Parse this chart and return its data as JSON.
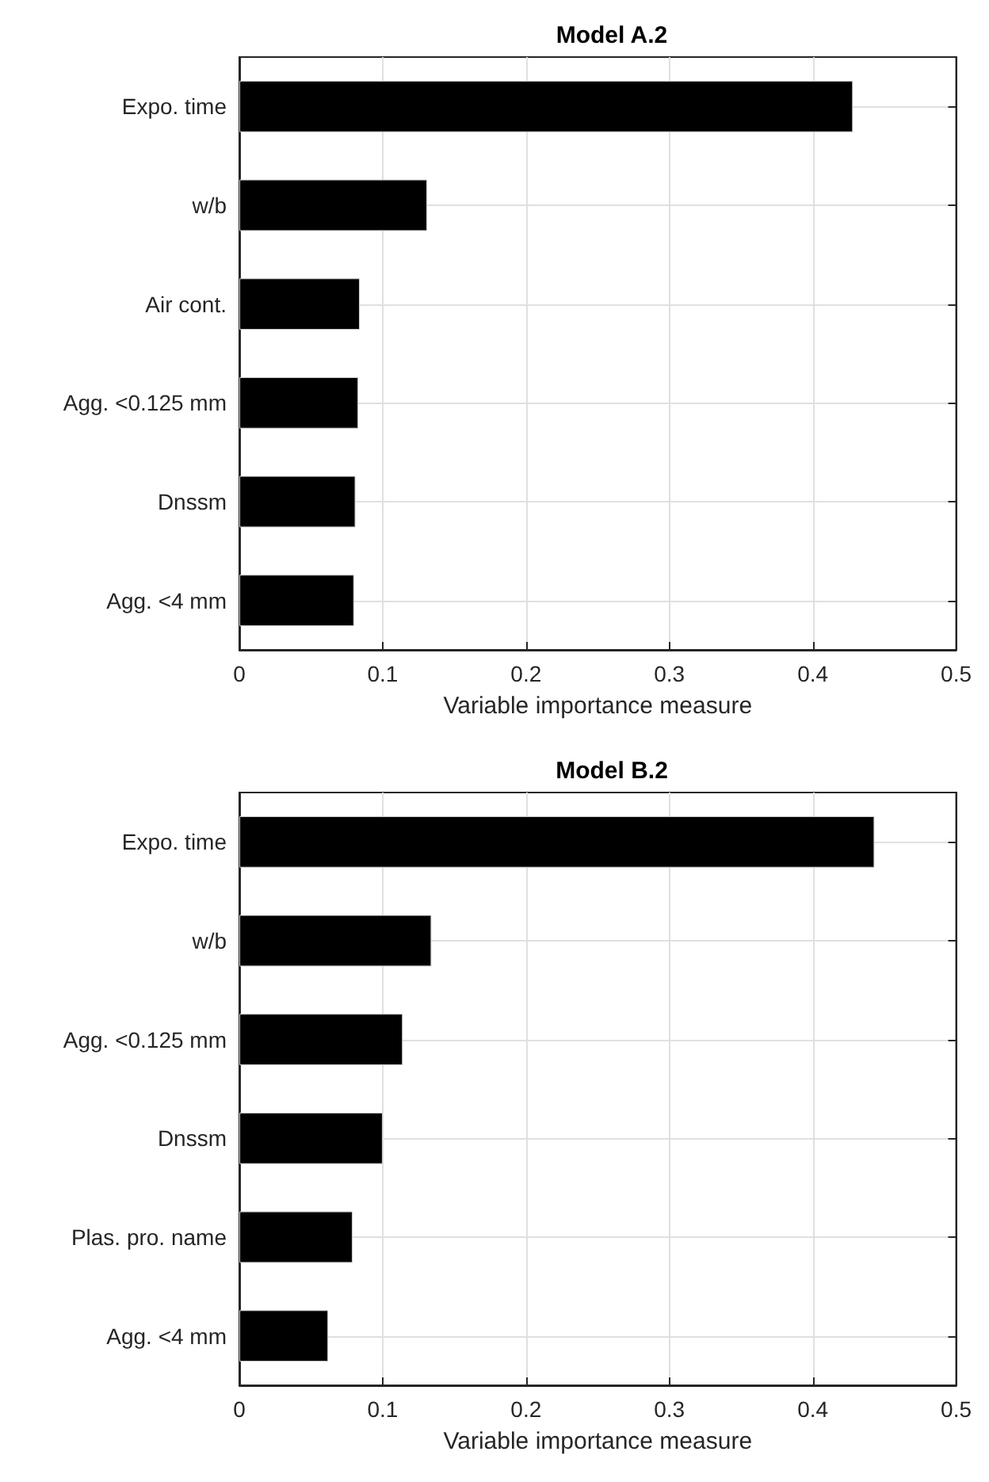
{
  "chart_data": [
    {
      "type": "bar",
      "orientation": "horizontal",
      "title": "Model A.2",
      "xlabel": "Variable importance measure",
      "categories": [
        "Expo. time",
        "w/b",
        "Air cont.",
        "Agg. <0.125 mm",
        "Dnssm",
        "Agg. <4 mm"
      ],
      "values": [
        0.428,
        0.131,
        0.084,
        0.083,
        0.081,
        0.08
      ],
      "color": "#000000",
      "xlim": [
        0,
        0.5
      ],
      "xticks": [
        0,
        0.1,
        0.2,
        0.3,
        0.4,
        0.5
      ],
      "grid": true
    },
    {
      "type": "bar",
      "orientation": "horizontal",
      "title": "Model B.2",
      "xlabel": "Variable importance measure",
      "categories": [
        "Expo. time",
        "w/b",
        "Agg. <0.125 mm",
        "Dnssm",
        "Plas. pro. name",
        "Agg. <4 mm"
      ],
      "values": [
        0.443,
        0.134,
        0.114,
        0.1,
        0.079,
        0.062
      ],
      "color": "#000000",
      "xlim": [
        0,
        0.5
      ],
      "xticks": [
        0,
        0.1,
        0.2,
        0.3,
        0.4,
        0.5
      ],
      "grid": true
    }
  ]
}
